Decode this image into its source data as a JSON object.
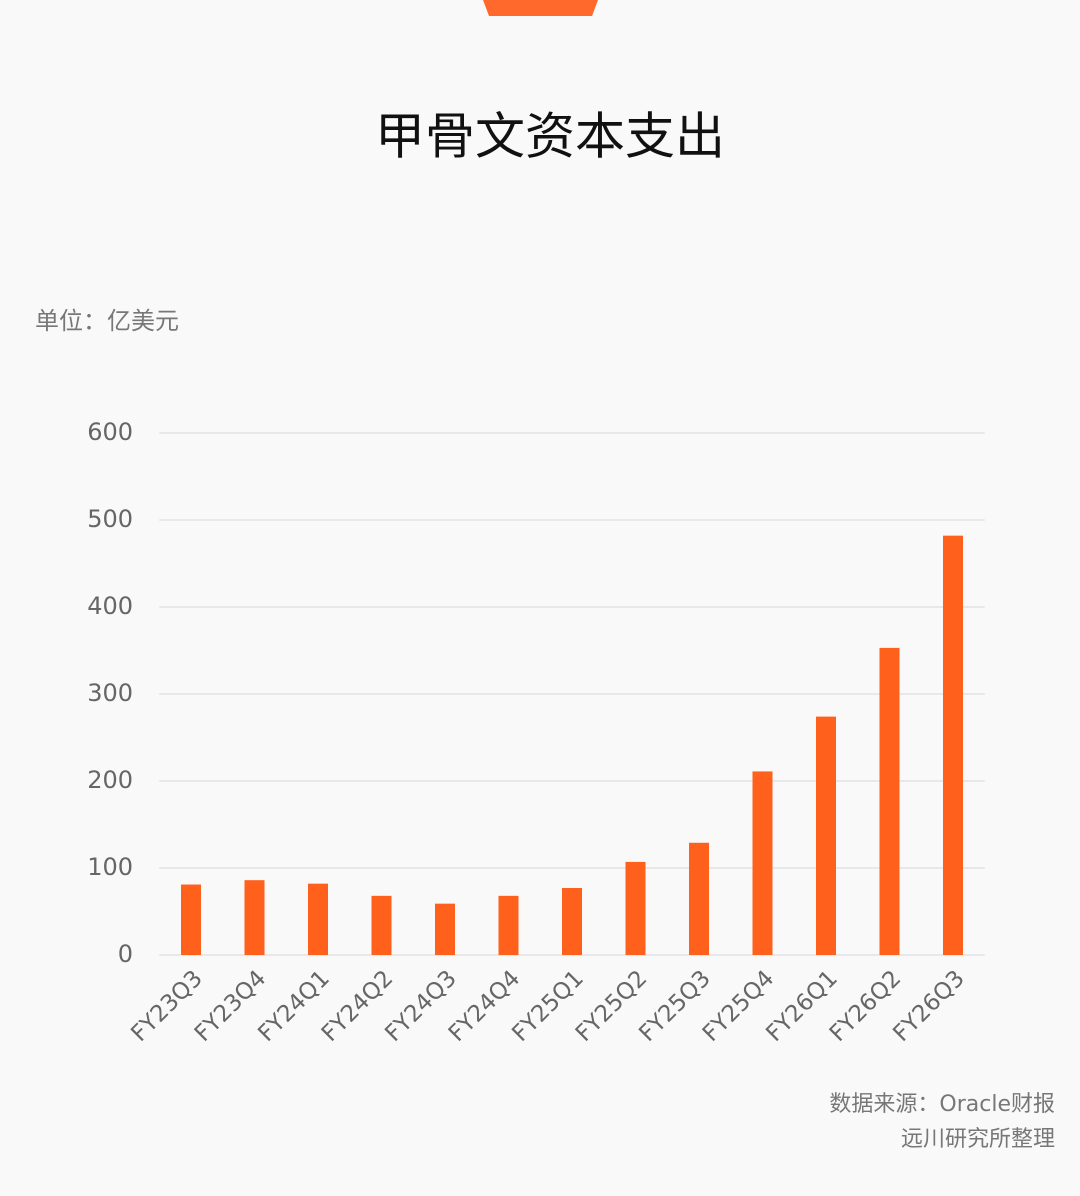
{
  "chart_data": {
    "type": "bar",
    "title": "甲骨文资本支出",
    "unit_label": "单位：亿美元",
    "categories": [
      "FY23Q3",
      "FY23Q4",
      "FY24Q1",
      "FY24Q2",
      "FY24Q3",
      "FY24Q4",
      "FY25Q1",
      "FY25Q2",
      "FY25Q3",
      "FY25Q4",
      "FY26Q1",
      "FY26Q2",
      "FY26Q3"
    ],
    "values": [
      81,
      86,
      82,
      68,
      59,
      68,
      77,
      107,
      129,
      211,
      274,
      353,
      482
    ],
    "color": "#ff601c",
    "ylim": [
      0,
      600
    ],
    "yticks": [
      0,
      100,
      200,
      300,
      400,
      500,
      600
    ],
    "grid": true,
    "source": [
      "数据来源：Oracle财报",
      "远川研究所整理"
    ]
  }
}
